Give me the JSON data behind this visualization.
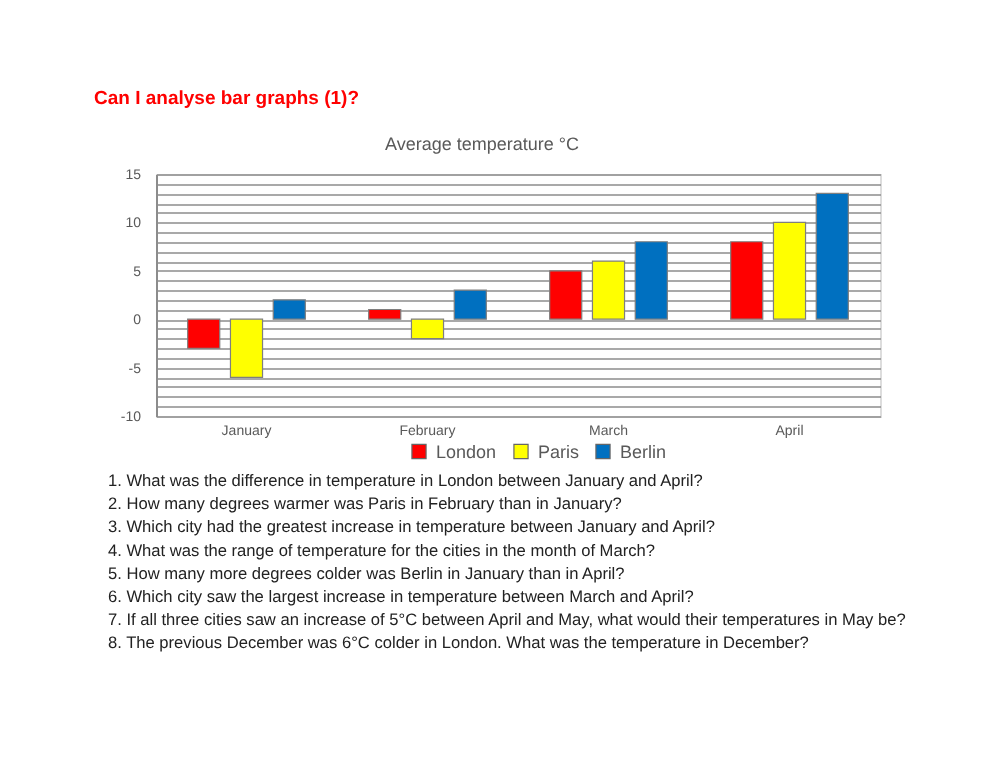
{
  "chart_data": {
    "type": "bar",
    "title": "Can I analyse bar graphs (1)?",
    "subtitle": "Average temperature °C",
    "categories": [
      "January",
      "February",
      "March",
      "April"
    ],
    "series": [
      {
        "name": "London",
        "color": "#ff0000",
        "values": [
          -3,
          1,
          5,
          8
        ]
      },
      {
        "name": "Paris",
        "color": "#ffff00",
        "values": [
          -6,
          -2,
          6,
          10
        ]
      },
      {
        "name": "Berlin",
        "color": "#0070c0",
        "values": [
          2,
          3,
          8,
          13
        ]
      }
    ],
    "ylim": [
      -10,
      15
    ],
    "yticks": [
      -10,
      {
        "value": -9,
        "label": null
      },
      {
        "value": -8,
        "label": null
      },
      {
        "value": -7,
        "label": null
      },
      {
        "value": -6,
        "label": null
      },
      -5,
      {
        "value": -4,
        "label": null
      },
      {
        "value": -3,
        "label": null
      },
      {
        "value": -2,
        "label": null
      },
      {
        "value": -1,
        "label": null
      },
      0,
      {
        "value": 1,
        "label": null
      },
      {
        "value": 2,
        "label": null
      },
      {
        "value": 3,
        "label": null
      },
      {
        "value": 4,
        "label": null
      },
      5,
      {
        "value": 6,
        "label": null
      },
      {
        "value": 7,
        "label": null
      },
      {
        "value": 8,
        "label": null
      },
      {
        "value": 9,
        "label": null
      },
      10,
      {
        "value": 11,
        "label": null
      },
      {
        "value": 12,
        "label": null
      },
      {
        "value": 13,
        "label": null
      },
      {
        "value": 14,
        "label": null
      },
      15
    ],
    "grid": "y",
    "legend": "bottom",
    "annotations": [
      "1. What was the difference in temperature in London between January and April?",
      "2. How many degrees warmer was Paris in February than in January?",
      "3. Which city had the greatest increase in temperature between January and April?",
      "4. What was the range of temperature for the cities in the month of March?",
      "5. How many more degrees colder was Berlin in January than in April?",
      "6. Which city saw the largest increase in temperature between March and April?",
      "7. If all three cities saw an increase of 5°C between April and May, what would their temperatures in May be?",
      "8. The previous December was 6°C colder in London. What was the temperature in December?"
    ]
  }
}
